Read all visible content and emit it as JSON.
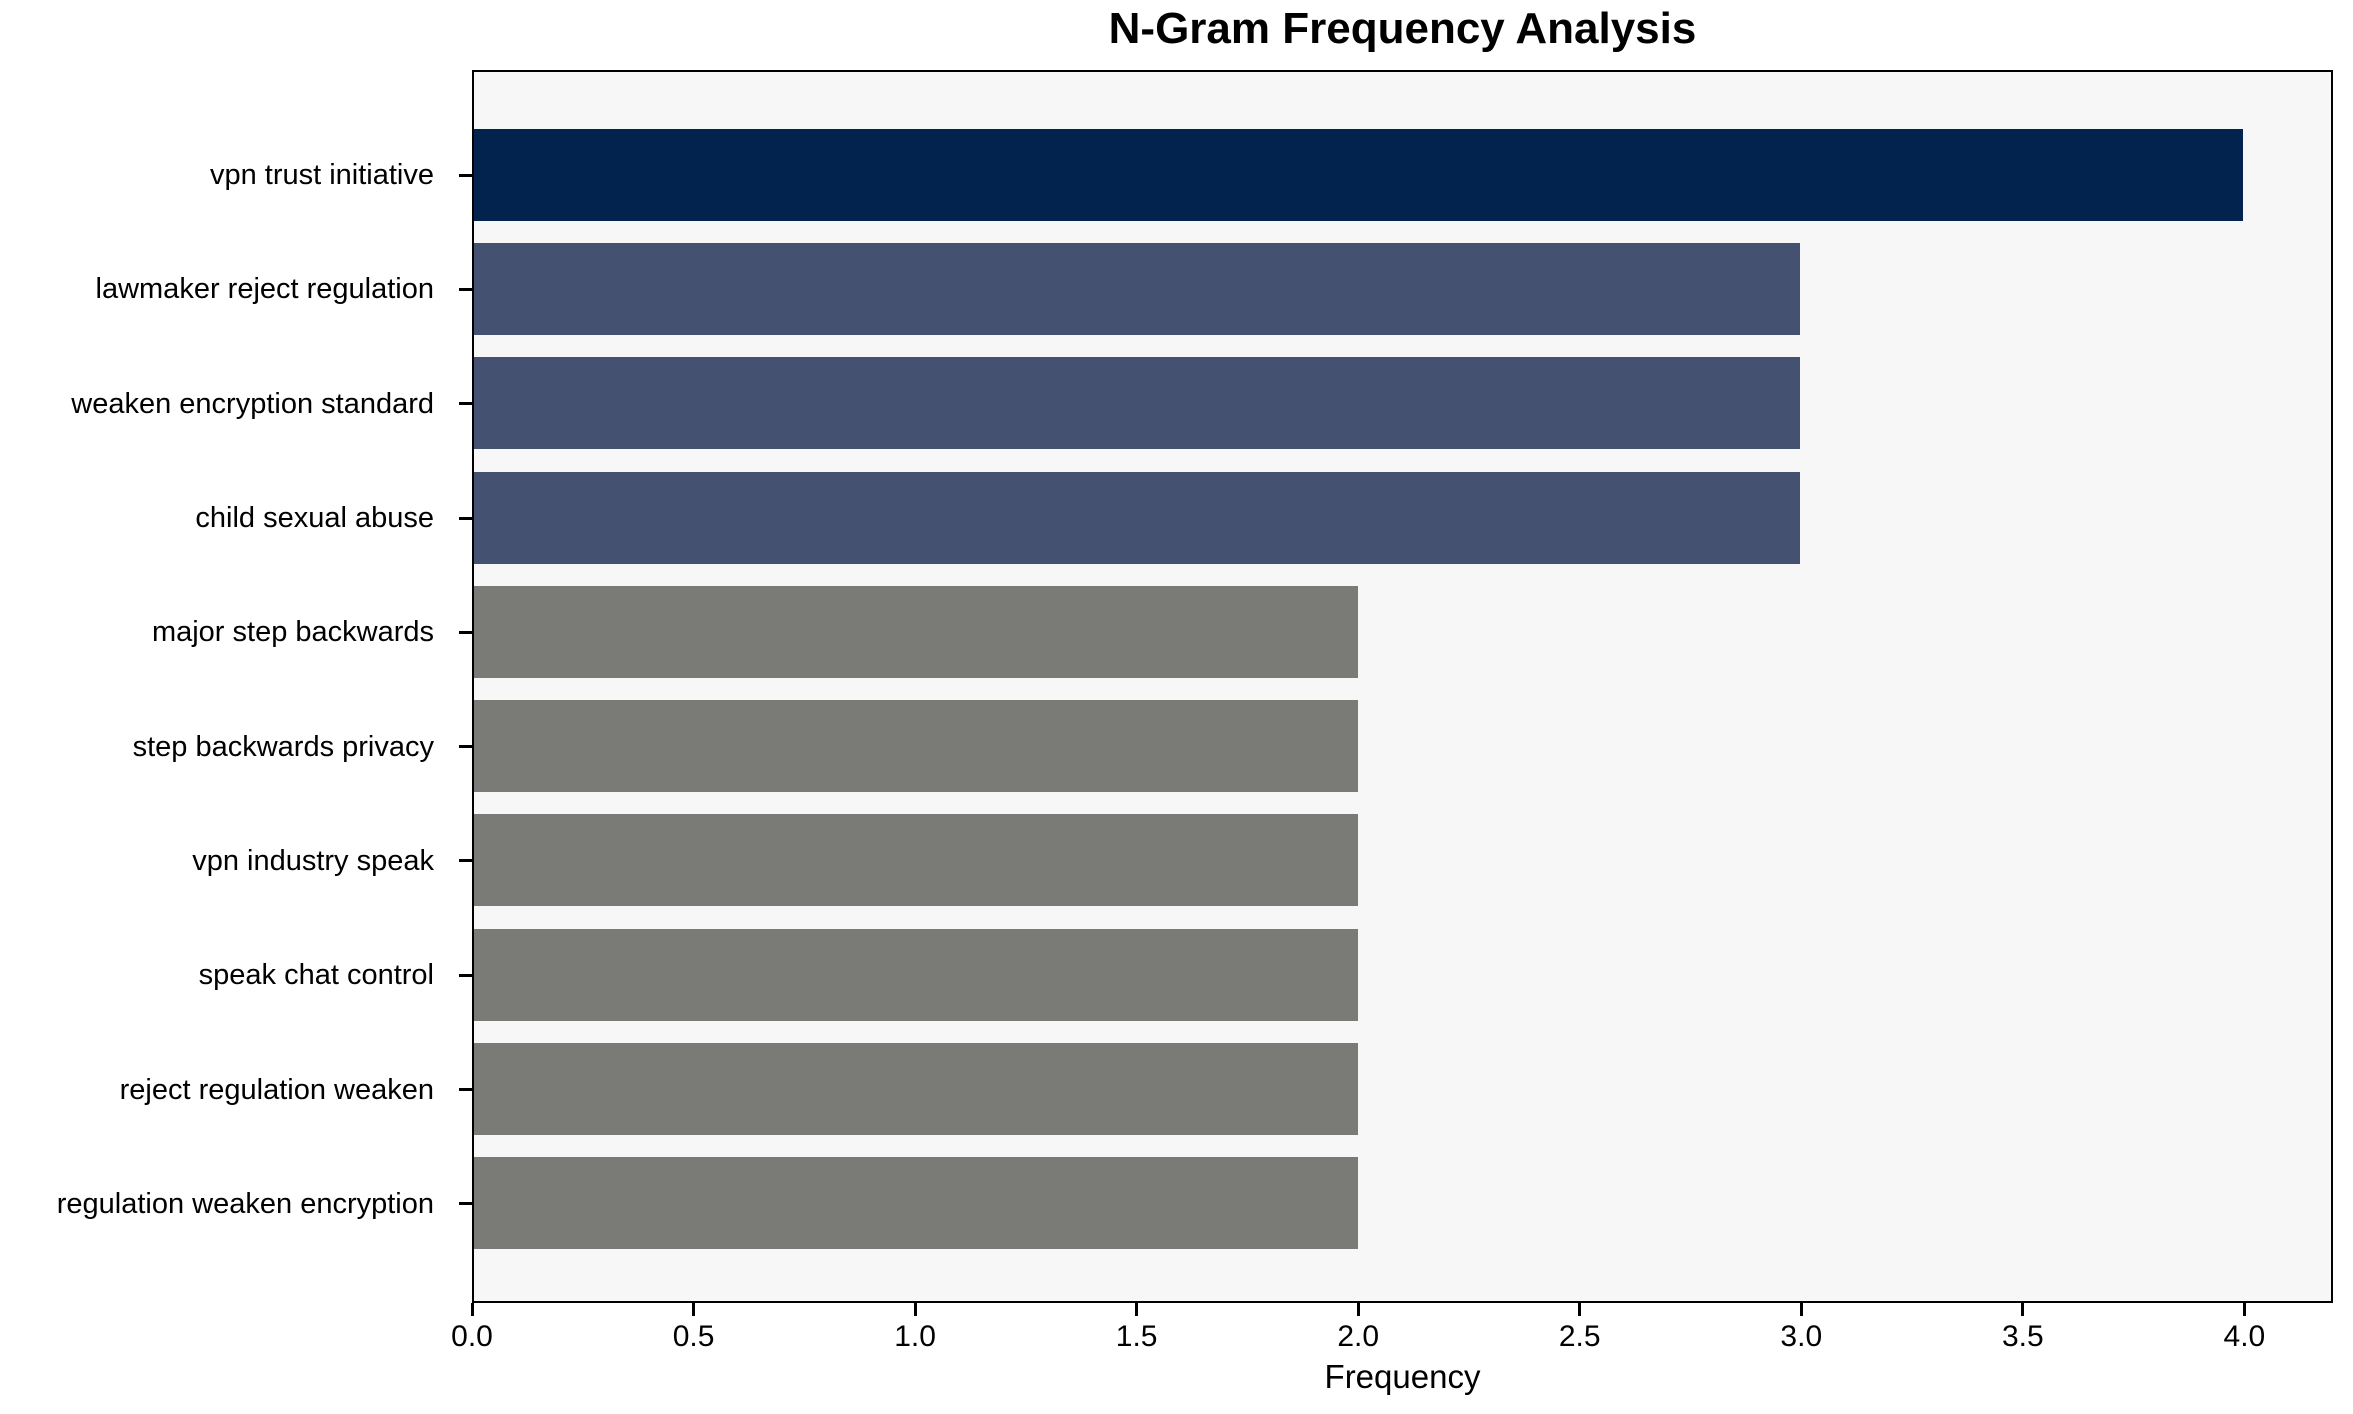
{
  "figure": {
    "background": "#ffffff",
    "plot_background": "#f7f7f7",
    "spine_color": "#000000",
    "text_color": "#000000"
  },
  "chart_data": {
    "type": "bar",
    "orientation": "horizontal",
    "title": "N-Gram Frequency Analysis",
    "xlabel": "Frequency",
    "ylabel": "",
    "categories": [
      "vpn trust initiative",
      "lawmaker reject regulation",
      "weaken encryption standard",
      "child sexual abuse",
      "major step backwards",
      "step backwards privacy",
      "vpn industry speak",
      "speak chat control",
      "reject regulation weaken",
      "regulation weaken encryption"
    ],
    "values": [
      4,
      3,
      3,
      3,
      2,
      2,
      2,
      2,
      2,
      2
    ],
    "bar_colors": [
      "#02234e",
      "#455170",
      "#455170",
      "#455170",
      "#7a7b77",
      "#7a7b77",
      "#7a7b77",
      "#7a7b77",
      "#7a7b77",
      "#7a7b77"
    ],
    "xlim": [
      0,
      4.2
    ],
    "xticks": [
      0.0,
      0.5,
      1.0,
      1.5,
      2.0,
      2.5,
      3.0,
      3.5,
      4.0
    ],
    "xtick_labels": [
      "0.0",
      "0.5",
      "1.0",
      "1.5",
      "2.0",
      "2.5",
      "3.0",
      "3.5",
      "4.0"
    ],
    "grid": false,
    "legend": "none"
  }
}
